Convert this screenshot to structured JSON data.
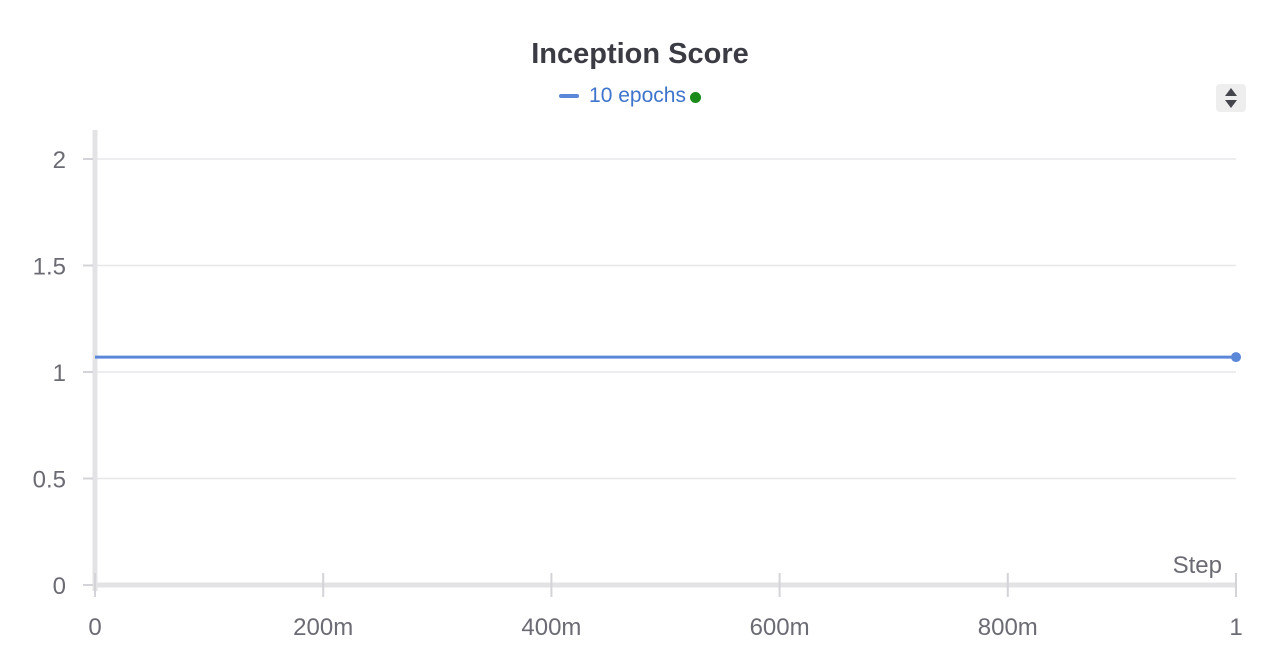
{
  "chart_data": {
    "type": "line",
    "title": "Inception Score",
    "xlabel": "Step",
    "ylabel": "",
    "xlim": [
      0,
      1
    ],
    "ylim": [
      0,
      2.1
    ],
    "x_ticks": [
      0,
      0.2,
      0.4,
      0.6,
      0.8,
      1
    ],
    "x_tick_labels": [
      "0",
      "200m",
      "400m",
      "600m",
      "800m",
      "1"
    ],
    "y_ticks": [
      0,
      0.5,
      1,
      1.5,
      2
    ],
    "y_tick_labels": [
      "0",
      "0.5",
      "1",
      "1.5",
      "2"
    ],
    "grid": true,
    "legend_position": "top-center",
    "series": [
      {
        "name": "10 epochs",
        "color": "#5b87d9",
        "status_color": "#1a8a1a",
        "x": [
          0,
          1
        ],
        "y": [
          1.07,
          1.07
        ]
      }
    ]
  },
  "controls": {
    "sort_icon": "sort-up-down-icon"
  }
}
